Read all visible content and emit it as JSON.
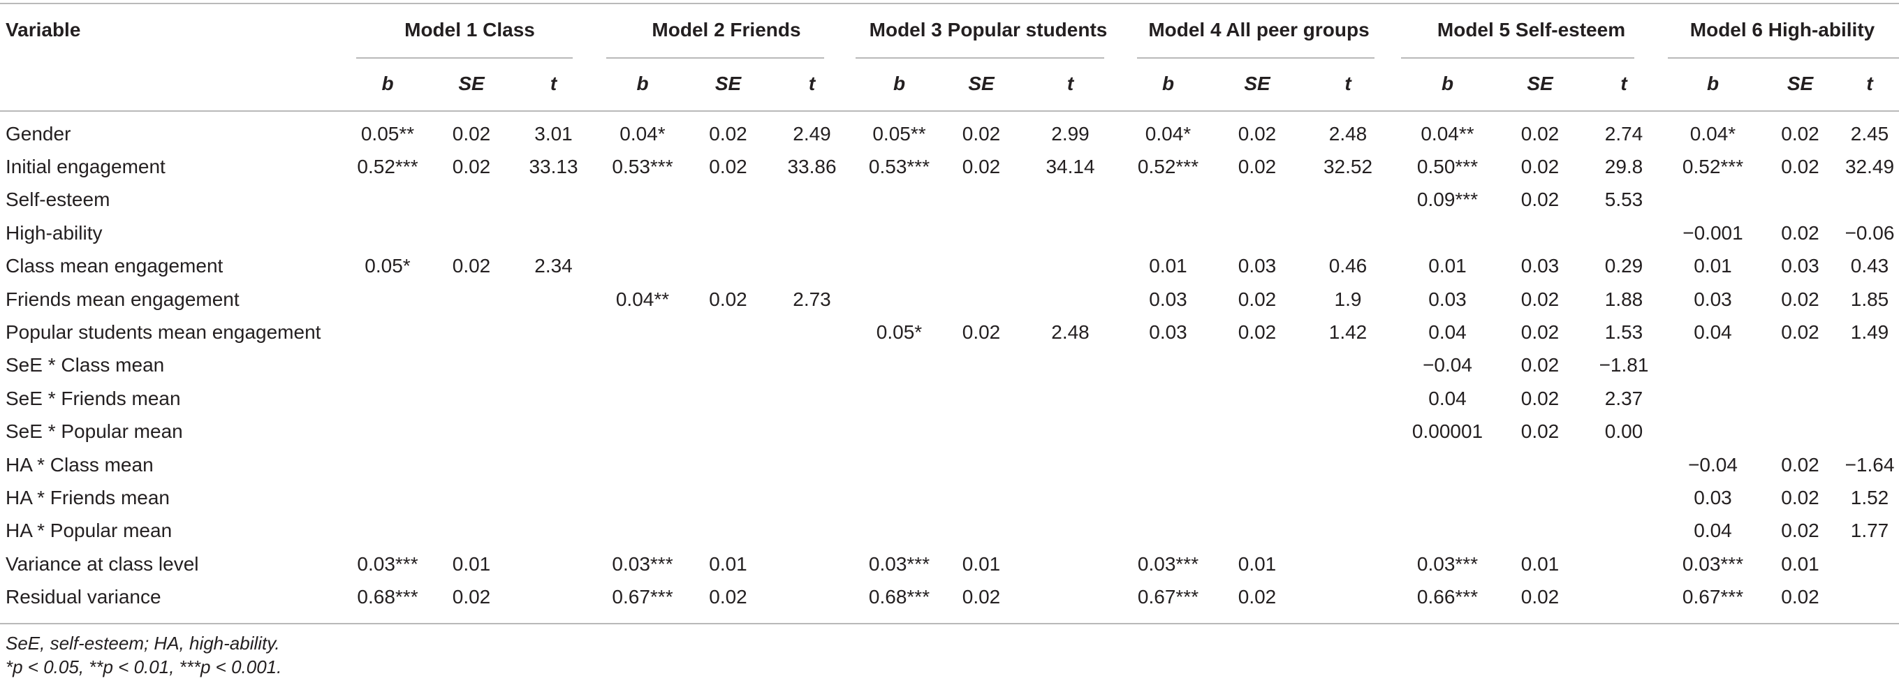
{
  "table": {
    "var_header": "Variable",
    "model_headers": [
      "Model 1 Class",
      "Model 2 Friends",
      "Model 3 Popular students",
      "Model 4 All peer groups",
      "Model 5 Self-esteem",
      "Model 6 High-ability"
    ],
    "sub_headers": [
      "b",
      "SE",
      "t"
    ],
    "rows": [
      {
        "label": "Gender",
        "cells": [
          "0.05**",
          "0.02",
          "3.01",
          "0.04*",
          "0.02",
          "2.49",
          "0.05**",
          "0.02",
          "2.99",
          "0.04*",
          "0.02",
          "2.48",
          "0.04**",
          "0.02",
          "2.74",
          "0.04*",
          "0.02",
          "2.45"
        ]
      },
      {
        "label": "Initial engagement",
        "cells": [
          "0.52***",
          "0.02",
          "33.13",
          "0.53***",
          "0.02",
          "33.86",
          "0.53***",
          "0.02",
          "34.14",
          "0.52***",
          "0.02",
          "32.52",
          "0.50***",
          "0.02",
          "29.8",
          "0.52***",
          "0.02",
          "32.49"
        ]
      },
      {
        "label": "Self-esteem",
        "cells": [
          "",
          "",
          "",
          "",
          "",
          "",
          "",
          "",
          "",
          "",
          "",
          "",
          "0.09***",
          "0.02",
          "5.53",
          "",
          "",
          ""
        ]
      },
      {
        "label": "High-ability",
        "cells": [
          "",
          "",
          "",
          "",
          "",
          "",
          "",
          "",
          "",
          "",
          "",
          "",
          "",
          "",
          "",
          "−0.001",
          "0.02",
          "−0.06"
        ]
      },
      {
        "label": "Class mean engagement",
        "cells": [
          "0.05*",
          "0.02",
          "2.34",
          "",
          "",
          "",
          "",
          "",
          "",
          "0.01",
          "0.03",
          "0.46",
          "0.01",
          "0.03",
          "0.29",
          "0.01",
          "0.03",
          "0.43"
        ]
      },
      {
        "label": "Friends mean engagement",
        "cells": [
          "",
          "",
          "",
          "0.04**",
          "0.02",
          "2.73",
          "",
          "",
          "",
          "0.03",
          "0.02",
          "1.9",
          "0.03",
          "0.02",
          "1.88",
          "0.03",
          "0.02",
          "1.85"
        ]
      },
      {
        "label": "Popular students mean engagement",
        "cells": [
          "",
          "",
          "",
          "",
          "",
          "",
          "0.05*",
          "0.02",
          "2.48",
          "0.03",
          "0.02",
          "1.42",
          "0.04",
          "0.02",
          "1.53",
          "0.04",
          "0.02",
          "1.49"
        ]
      },
      {
        "label": "SeE * Class mean",
        "cells": [
          "",
          "",
          "",
          "",
          "",
          "",
          "",
          "",
          "",
          "",
          "",
          "",
          "−0.04",
          "0.02",
          "−1.81",
          "",
          "",
          ""
        ]
      },
      {
        "label": "SeE * Friends mean",
        "cells": [
          "",
          "",
          "",
          "",
          "",
          "",
          "",
          "",
          "",
          "",
          "",
          "",
          "0.04",
          "0.02",
          "2.37",
          "",
          "",
          ""
        ]
      },
      {
        "label": "SeE * Popular mean",
        "cells": [
          "",
          "",
          "",
          "",
          "",
          "",
          "",
          "",
          "",
          "",
          "",
          "",
          "0.00001",
          "0.02",
          "0.00",
          "",
          "",
          ""
        ]
      },
      {
        "label": "HA * Class mean",
        "cells": [
          "",
          "",
          "",
          "",
          "",
          "",
          "",
          "",
          "",
          "",
          "",
          "",
          "",
          "",
          "",
          "−0.04",
          "0.02",
          "−1.64"
        ]
      },
      {
        "label": "HA * Friends mean",
        "cells": [
          "",
          "",
          "",
          "",
          "",
          "",
          "",
          "",
          "",
          "",
          "",
          "",
          "",
          "",
          "",
          "0.03",
          "0.02",
          "1.52"
        ]
      },
      {
        "label": "HA * Popular mean",
        "cells": [
          "",
          "",
          "",
          "",
          "",
          "",
          "",
          "",
          "",
          "",
          "",
          "",
          "",
          "",
          "",
          "0.04",
          "0.02",
          "1.77"
        ]
      },
      {
        "label": "Variance at class level",
        "cells": [
          "0.03***",
          "0.01",
          "",
          "0.03***",
          "0.01",
          "",
          "0.03***",
          "0.01",
          "",
          "0.03***",
          "0.01",
          "",
          "0.03***",
          "0.01",
          "",
          "0.03***",
          "0.01",
          ""
        ]
      },
      {
        "label": "Residual variance",
        "cells": [
          "0.68***",
          "0.02",
          "",
          "0.67***",
          "0.02",
          "",
          "0.68***",
          "0.02",
          "",
          "0.67***",
          "0.02",
          "",
          "0.66***",
          "0.02",
          "",
          "0.67***",
          "0.02",
          ""
        ]
      }
    ]
  },
  "notes": {
    "abbreviations": "SeE, self-esteem; HA, high-ability.",
    "significance": "*p < 0.05, **p < 0.01, ***p < 0.001."
  }
}
